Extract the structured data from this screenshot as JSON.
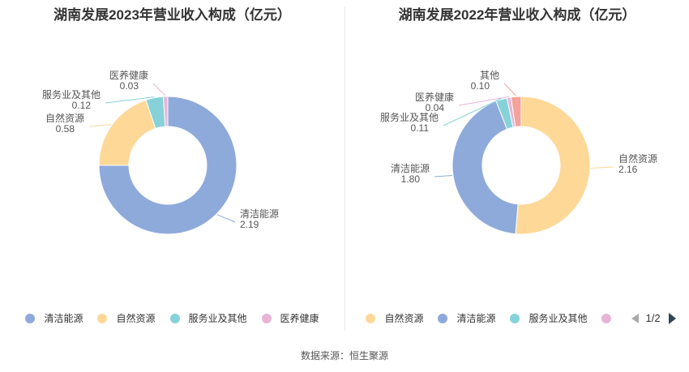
{
  "chart_data": [
    {
      "type": "pie",
      "title": "湖南发展2023年营业收入构成（亿元）",
      "categories": [
        "清洁能源",
        "自然资源",
        "服务业及其他",
        "医养健康"
      ],
      "values": [
        2.19,
        0.58,
        0.12,
        0.03
      ],
      "value_labels": [
        "2.19",
        "0.58",
        "0.12",
        "0.03"
      ],
      "colors": [
        "#8eaadb",
        "#fed897",
        "#86d2d8",
        "#e8b4d6"
      ],
      "legend": {
        "position": "bottom",
        "items": [
          "清洁能源",
          "自然资源",
          "服务业及其他",
          "医养健康"
        ]
      }
    },
    {
      "type": "pie",
      "title": "湖南发展2022年营业收入构成（亿元）",
      "categories": [
        "自然资源",
        "清洁能源",
        "服务业及其他",
        "医养健康",
        "其他"
      ],
      "values": [
        2.16,
        1.8,
        0.11,
        0.04,
        0.1
      ],
      "value_labels": [
        "2.16",
        "1.80",
        "0.11",
        "0.04",
        "0.10"
      ],
      "colors": [
        "#fed897",
        "#8eaadb",
        "#86d2d8",
        "#e8b4d6",
        "#f4a29a"
      ],
      "legend": {
        "position": "bottom",
        "items": [
          "自然资源",
          "清洁能源",
          "服务业及其他"
        ],
        "pager": "1/2"
      }
    }
  ],
  "footer": {
    "source": "数据来源：恒生聚源"
  }
}
